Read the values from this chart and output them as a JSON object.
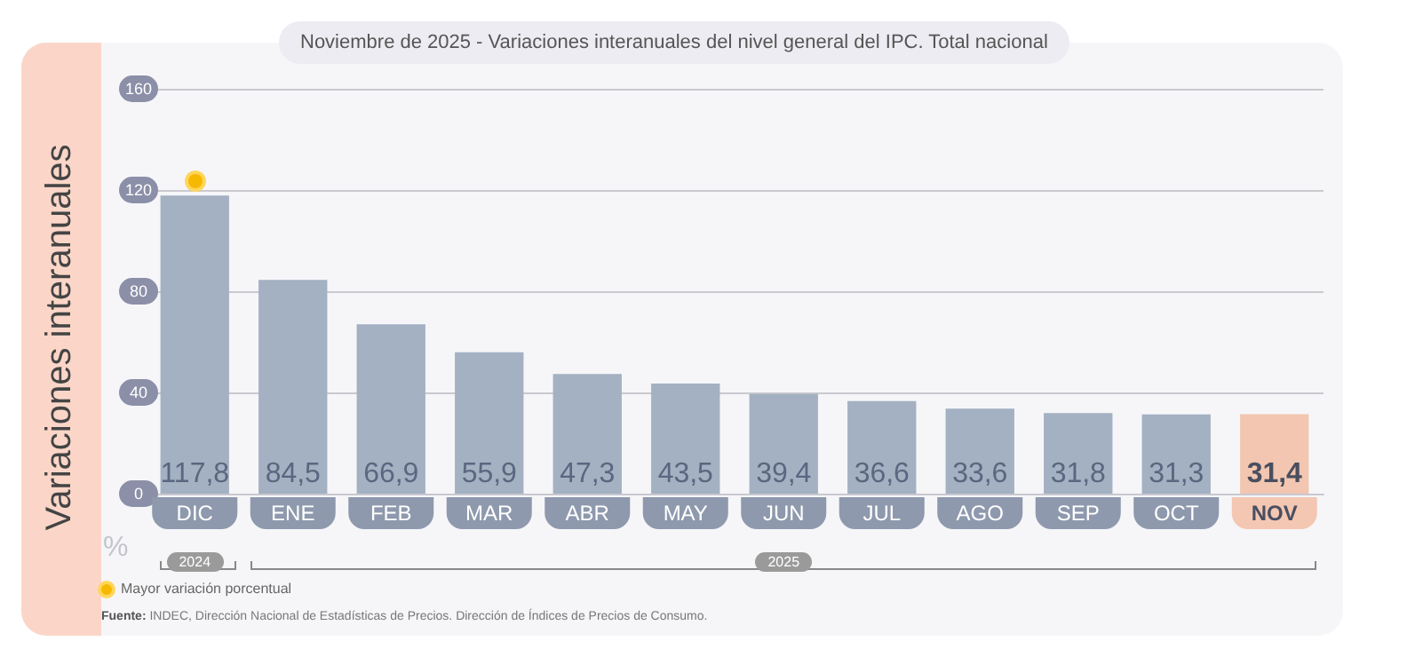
{
  "chart_data": {
    "type": "bar",
    "title": "Noviembre de 2025 - Variaciones interanuales del nivel general del IPC. Total nacional",
    "ylabel": "Variaciones interanuales",
    "categories": [
      "DIC",
      "ENE",
      "FEB",
      "MAR",
      "ABR",
      "MAY",
      "JUN",
      "JUL",
      "AGO",
      "SEP",
      "OCT",
      "NOV"
    ],
    "values": [
      117.8,
      84.5,
      66.9,
      55.9,
      47.3,
      43.5,
      39.4,
      36.6,
      33.6,
      31.8,
      31.3,
      31.4
    ],
    "value_labels": [
      "117,8",
      "84,5",
      "66,9",
      "55,9",
      "47,3",
      "43,5",
      "39,4",
      "36,6",
      "33,6",
      "31,8",
      "31,3",
      "31,4"
    ],
    "colors": [
      "#a3b1c2",
      "#a3b1c2",
      "#a3b1c2",
      "#a3b1c2",
      "#a3b1c2",
      "#a3b1c2",
      "#a3b1c2",
      "#a3b1c2",
      "#a3b1c2",
      "#a3b1c2",
      "#a3b1c2",
      "#f2c6b0"
    ],
    "ylim": [
      0,
      160
    ],
    "yticks": [
      0,
      40,
      80,
      120,
      160
    ],
    "grid": "y",
    "annotations": [
      "Mayor variación porcentual",
      "%",
      "2024",
      "2025",
      "Fuente: INDEC, Dirección Nacional de Estadísticas de Precios. Dirección de Índices de Precios de Consumo."
    ]
  }
}
